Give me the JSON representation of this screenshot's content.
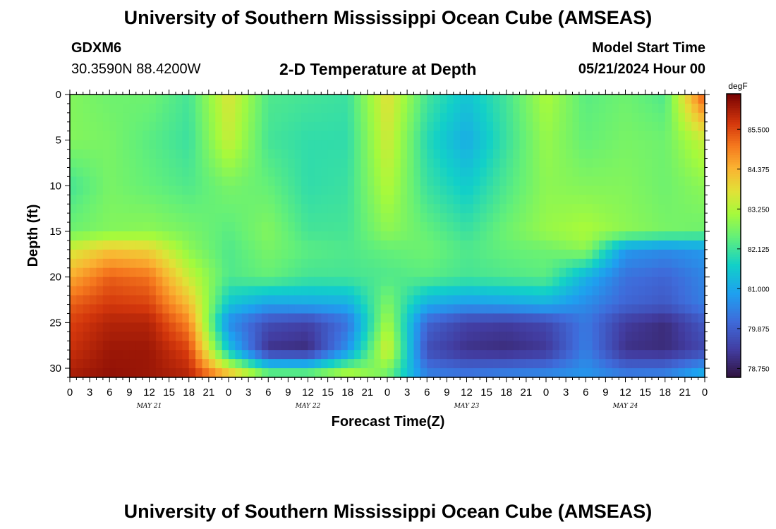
{
  "title": "University of Southern Mississippi Ocean Cube (AMSEAS)",
  "station": {
    "id": "GDXM6",
    "coords": "30.3590N  88.4200W"
  },
  "chart_subtitle": "2-D Temperature at Depth",
  "model": {
    "label": "Model Start Time",
    "value": "05/21/2024 Hour 00"
  },
  "chart_data": {
    "type": "heatmap",
    "title": "2-D Temperature at Depth",
    "xlabel": "Forecast Time(Z)",
    "ylabel": "Depth (ft)",
    "x_tick_labels": [
      "0",
      "3",
      "6",
      "9",
      "12",
      "15",
      "18",
      "21",
      "0",
      "3",
      "6",
      "9",
      "12",
      "15",
      "18",
      "21",
      "0",
      "3",
      "6",
      "9",
      "12",
      "15",
      "18",
      "21",
      "0",
      "3",
      "6",
      "9",
      "12",
      "15",
      "18",
      "21",
      "0"
    ],
    "day_labels": [
      "MAY 21",
      "MAY 22",
      "MAY 23",
      "MAY 24"
    ],
    "y_tick_labels": [
      "0",
      "5",
      "10",
      "15",
      "20",
      "25",
      "30"
    ],
    "ylim": [
      0,
      31
    ],
    "y_inverted": true,
    "xlim_hours": [
      0,
      96
    ],
    "colorbar": {
      "unit": "degF",
      "tick_labels": [
        "85.500",
        "84.375",
        "83.250",
        "82.125",
        "81.000",
        "79.875",
        "78.750"
      ],
      "range": [
        78.5,
        86.5
      ]
    },
    "approx_temperature_field_degF": {
      "depths_ft": [
        0,
        5,
        10,
        15,
        17,
        20,
        23,
        25,
        28,
        31
      ],
      "hours": [
        0,
        6,
        12,
        18,
        24,
        30,
        36,
        42,
        48,
        54,
        60,
        66,
        72,
        78,
        84,
        90,
        96
      ],
      "values": [
        [
          82.8,
          82.6,
          82.6,
          82.2,
          83.7,
          82.3,
          82.2,
          82.1,
          83.8,
          82.2,
          81.5,
          82.2,
          83.2,
          82.4,
          82.6,
          82.3,
          85.5
        ],
        [
          82.8,
          82.7,
          82.4,
          82.1,
          83.5,
          82.2,
          82.0,
          82.0,
          83.6,
          81.9,
          81.1,
          82.1,
          83.0,
          82.5,
          82.7,
          82.6,
          83.5
        ],
        [
          82.2,
          82.7,
          82.5,
          82.3,
          82.7,
          82.5,
          82.0,
          82.1,
          83.3,
          82.1,
          81.6,
          82.3,
          82.9,
          82.8,
          82.8,
          82.6,
          82.9
        ],
        [
          82.6,
          82.8,
          82.9,
          82.7,
          82.4,
          82.8,
          82.2,
          82.2,
          82.9,
          82.5,
          82.1,
          82.6,
          83.0,
          83.2,
          82.9,
          82.7,
          82.6
        ],
        [
          83.6,
          84.2,
          84.0,
          82.9,
          82.3,
          82.7,
          82.4,
          82.3,
          82.5,
          82.6,
          82.3,
          82.5,
          82.6,
          82.9,
          80.8,
          80.6,
          80.8
        ],
        [
          84.5,
          85.3,
          85.1,
          83.5,
          82.3,
          82.5,
          82.2,
          82.2,
          82.3,
          82.4,
          82.2,
          82.3,
          82.4,
          81.2,
          80.2,
          80.0,
          80.5
        ],
        [
          85.3,
          85.7,
          85.6,
          84.3,
          81.5,
          80.9,
          81.0,
          81.1,
          82.8,
          81.1,
          80.8,
          80.9,
          81.1,
          80.6,
          80.0,
          79.8,
          80.4
        ],
        [
          85.6,
          86.0,
          86.0,
          84.9,
          80.6,
          79.6,
          79.4,
          80.2,
          83.2,
          80.0,
          79.4,
          79.3,
          79.5,
          80.3,
          79.3,
          79.0,
          79.8
        ],
        [
          85.8,
          86.2,
          86.2,
          85.6,
          81.5,
          79.1,
          79.0,
          80.7,
          83.7,
          79.6,
          79.1,
          79.0,
          79.2,
          80.4,
          79.1,
          79.0,
          79.5
        ],
        [
          86.1,
          86.3,
          86.2,
          86.0,
          84.6,
          83.0,
          83.0,
          83.6,
          82.5,
          80.5,
          80.4,
          80.6,
          80.7,
          80.8,
          80.5,
          80.6,
          81.4
        ]
      ]
    }
  },
  "footer_title": "University of Southern Mississippi Ocean Cube (AMSEAS)"
}
